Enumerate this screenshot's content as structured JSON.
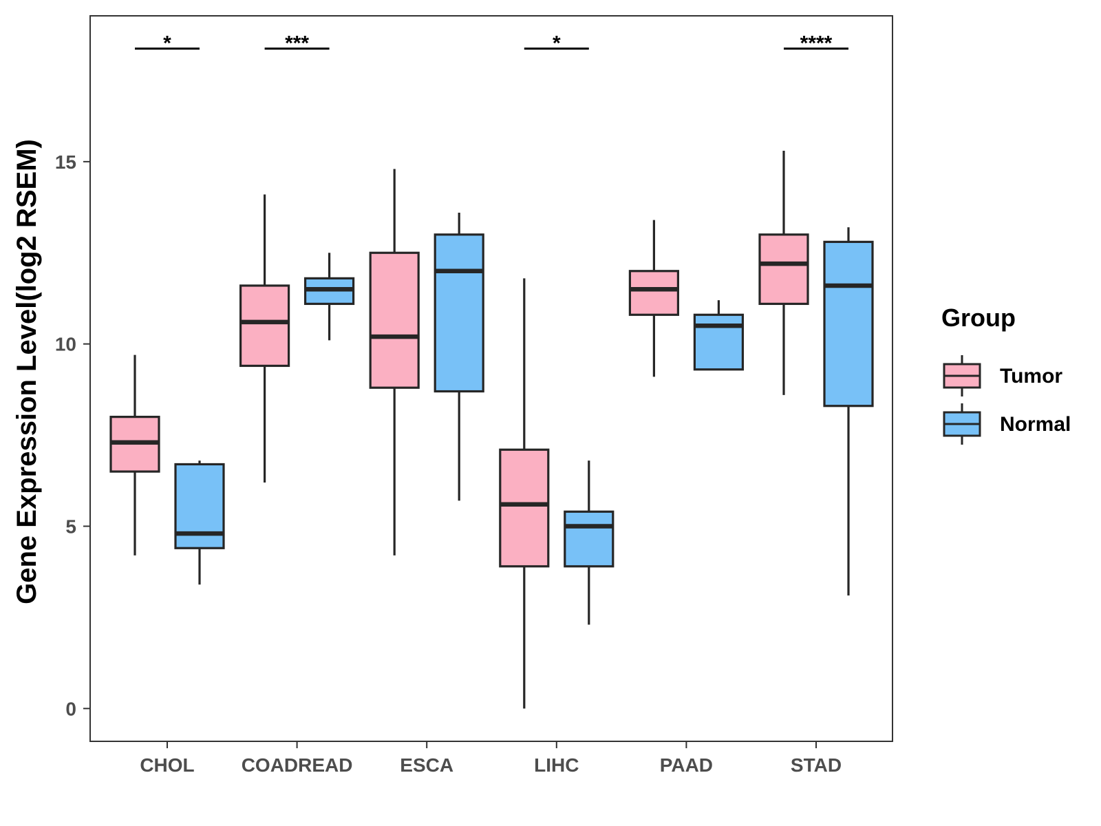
{
  "chart_data": {
    "type": "box",
    "ylabel": "Gene Expression Level(log2 RSEM)",
    "xlabel": "",
    "ylim": [
      -0.9,
      19
    ],
    "yticks": [
      0,
      5,
      10,
      15
    ],
    "ytick_labels": [
      "0",
      "5",
      "10",
      "15"
    ],
    "categories": [
      "CHOL",
      "COADREAD",
      "ESCA",
      "LIHC",
      "PAAD",
      "STAD"
    ],
    "legend": {
      "title": "Group",
      "position": "right",
      "entries": [
        "Tumor",
        "Normal"
      ]
    },
    "colors": {
      "Tumor": "#fbb0c2",
      "Normal": "#78c1f7",
      "outline": "#262626"
    },
    "series": [
      {
        "name": "Tumor",
        "boxes": [
          {
            "category": "CHOL",
            "min": 4.2,
            "q1": 6.5,
            "median": 7.3,
            "q3": 8.0,
            "max": 9.7
          },
          {
            "category": "COADREAD",
            "min": 6.2,
            "q1": 9.4,
            "median": 10.6,
            "q3": 11.6,
            "max": 14.1
          },
          {
            "category": "ESCA",
            "min": 4.2,
            "q1": 8.8,
            "median": 10.2,
            "q3": 12.5,
            "max": 14.8
          },
          {
            "category": "LIHC",
            "min": 0.0,
            "q1": 3.9,
            "median": 5.6,
            "q3": 7.1,
            "max": 11.8
          },
          {
            "category": "PAAD",
            "min": 9.1,
            "q1": 10.8,
            "median": 11.5,
            "q3": 12.0,
            "max": 13.4
          },
          {
            "category": "STAD",
            "min": 8.6,
            "q1": 11.1,
            "median": 12.2,
            "q3": 13.0,
            "max": 15.3
          }
        ]
      },
      {
        "name": "Normal",
        "boxes": [
          {
            "category": "CHOL",
            "min": 3.4,
            "q1": 4.4,
            "median": 4.8,
            "q3": 6.7,
            "max": 6.8
          },
          {
            "category": "COADREAD",
            "min": 10.1,
            "q1": 11.1,
            "median": 11.5,
            "q3": 11.8,
            "max": 12.5
          },
          {
            "category": "ESCA",
            "min": 5.7,
            "q1": 8.7,
            "median": 12.0,
            "q3": 13.0,
            "max": 13.6
          },
          {
            "category": "LIHC",
            "min": 2.3,
            "q1": 3.9,
            "median": 5.0,
            "q3": 5.4,
            "max": 6.8
          },
          {
            "category": "PAAD",
            "min": 9.3,
            "q1": 9.3,
            "median": 10.5,
            "q3": 10.8,
            "max": 11.2
          },
          {
            "category": "STAD",
            "min": 3.1,
            "q1": 8.3,
            "median": 11.6,
            "q3": 12.8,
            "max": 13.2
          }
        ]
      }
    ],
    "annotations": [
      {
        "category": "CHOL",
        "label": "*",
        "y": 18.1
      },
      {
        "category": "COADREAD",
        "label": "***",
        "y": 18.1
      },
      {
        "category": "LIHC",
        "label": "*",
        "y": 18.1
      },
      {
        "category": "STAD",
        "label": "****",
        "y": 18.1
      }
    ]
  }
}
